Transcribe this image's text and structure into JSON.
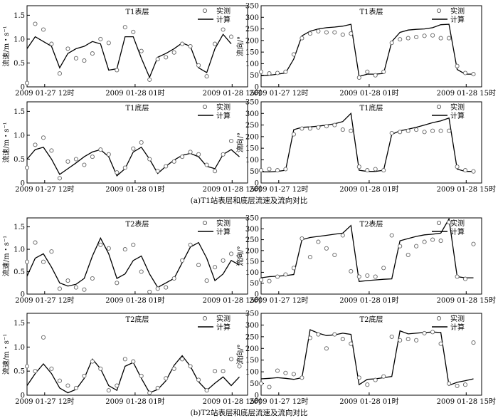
{
  "captions": {
    "a": "(a)T1站表层和底层流速及流向对比",
    "b": "(b)T2站表层和底层流速及流向对比"
  },
  "legend": {
    "measured": "实测",
    "computed": "计算"
  },
  "time_ticks": [
    "2009 01-27 12时",
    "2009 01-28 01时",
    "2009 01-28 15时"
  ],
  "chart_data": [
    {
      "type": "line",
      "title": "T1表层",
      "ylabel": "流速/m・s⁻¹",
      "xlim": [
        0,
        27
      ],
      "ylim": [
        0,
        1.7
      ],
      "yticks": [
        0,
        0.5,
        1.0,
        1.5
      ],
      "computed": {
        "x": [
          0,
          1,
          2,
          3,
          4,
          5,
          6,
          7,
          8,
          9,
          10,
          11,
          12,
          13,
          14,
          15,
          16,
          17,
          18,
          19,
          20,
          21,
          22,
          23,
          24,
          25,
          26,
          27
        ],
        "y": [
          0.8,
          1.05,
          0.95,
          0.85,
          0.4,
          0.7,
          0.8,
          0.85,
          0.95,
          0.9,
          0.35,
          0.38,
          1.05,
          1.05,
          0.6,
          0.2,
          0.62,
          0.7,
          0.8,
          0.92,
          0.85,
          0.4,
          0.3,
          0.8,
          1.1,
          0.9,
          null,
          null
        ]
      },
      "measured": {
        "x": [
          0,
          1,
          2,
          3,
          4,
          5,
          6,
          7,
          8,
          9,
          10,
          11,
          12,
          13,
          14,
          15,
          16,
          17,
          18,
          19,
          20,
          21,
          22,
          23,
          24,
          25
        ],
        "y": [
          0.08,
          1.32,
          1.2,
          0.9,
          0.28,
          0.8,
          0.6,
          0.55,
          0.7,
          1.0,
          0.92,
          0.35,
          1.25,
          1.15,
          0.75,
          0.15,
          0.58,
          0.62,
          0.72,
          0.9,
          0.85,
          0.45,
          0.22,
          0.9,
          1.2,
          1.05
        ]
      },
      "legend": "top-right"
    },
    {
      "type": "line",
      "title": "T1表层",
      "ylabel": "流向/°",
      "xlim": [
        0,
        27
      ],
      "ylim": [
        0,
        350
      ],
      "yticks": [
        0,
        50,
        100,
        150,
        200,
        250,
        300,
        350
      ],
      "computed": {
        "x": [
          0,
          1,
          2,
          3,
          4,
          5,
          6,
          7,
          8,
          9,
          10,
          11,
          12,
          13,
          14,
          15,
          16,
          17,
          18,
          19,
          20,
          21,
          22,
          23,
          24,
          25,
          26,
          27
        ],
        "y": [
          48,
          50,
          55,
          60,
          120,
          220,
          240,
          250,
          255,
          258,
          262,
          270,
          45,
          55,
          55,
          58,
          195,
          235,
          245,
          248,
          250,
          255,
          268,
          270,
          75,
          55,
          55,
          null
        ]
      },
      "measured": {
        "x": [
          0,
          1,
          2,
          3,
          4,
          5,
          6,
          7,
          8,
          9,
          10,
          11,
          12,
          13,
          14,
          15,
          16,
          17,
          18,
          19,
          20,
          21,
          22,
          23,
          24,
          25,
          26
        ],
        "y": [
          65,
          58,
          60,
          65,
          140,
          210,
          230,
          240,
          235,
          235,
          225,
          230,
          40,
          65,
          50,
          65,
          190,
          205,
          210,
          215,
          220,
          222,
          210,
          210,
          90,
          60,
          55
        ]
      },
      "legend": "top-right"
    },
    {
      "type": "line",
      "title": "T1底层",
      "ylabel": "流速/m・s⁻¹",
      "xlim": [
        0,
        27
      ],
      "ylim": [
        0,
        1.7
      ],
      "yticks": [
        0,
        0.5,
        1.0,
        1.5
      ],
      "computed": {
        "x": [
          0,
          1,
          2,
          3,
          4,
          5,
          6,
          7,
          8,
          9,
          10,
          11,
          12,
          13,
          14,
          15,
          16,
          17,
          18,
          19,
          20,
          21,
          22,
          23,
          24,
          25,
          26
        ],
        "y": [
          0.5,
          0.7,
          0.75,
          0.5,
          0.18,
          0.3,
          0.42,
          0.55,
          0.65,
          0.7,
          0.55,
          0.15,
          0.3,
          0.65,
          0.75,
          0.5,
          0.2,
          0.35,
          0.48,
          0.58,
          0.62,
          0.55,
          0.35,
          0.3,
          0.6,
          0.7,
          0.55
        ]
      },
      "measured": {
        "x": [
          0,
          1,
          2,
          3,
          4,
          5,
          6,
          7,
          8,
          9,
          10,
          11,
          12,
          13,
          14,
          15,
          16,
          17,
          18,
          19,
          20,
          21,
          22,
          23,
          24,
          25,
          26
        ],
        "y": [
          0.32,
          0.8,
          0.95,
          0.68,
          0.1,
          0.45,
          0.5,
          0.38,
          0.55,
          0.7,
          0.6,
          0.22,
          0.32,
          0.72,
          0.85,
          0.5,
          0.25,
          0.35,
          0.45,
          0.55,
          0.65,
          0.6,
          0.38,
          0.25,
          0.6,
          0.88,
          0.78
        ]
      },
      "legend": "top-right"
    },
    {
      "type": "line",
      "title": "T1底层",
      "ylabel": "流向/°",
      "xlim": [
        0,
        27
      ],
      "ylim": [
        0,
        350
      ],
      "yticks": [
        0,
        50,
        100,
        150,
        200,
        250,
        300,
        350
      ],
      "computed": {
        "x": [
          0,
          1,
          2,
          3,
          4,
          5,
          6,
          7,
          8,
          9,
          10,
          11,
          12,
          13,
          14,
          15,
          16,
          17,
          18,
          19,
          20,
          21,
          22,
          23,
          24,
          25,
          26
        ],
        "y": [
          48,
          48,
          50,
          55,
          230,
          240,
          242,
          245,
          250,
          255,
          265,
          300,
          55,
          50,
          50,
          55,
          210,
          225,
          232,
          240,
          250,
          260,
          268,
          280,
          60,
          50,
          50
        ]
      },
      "measured": {
        "x": [
          0,
          1,
          2,
          3,
          4,
          5,
          6,
          7,
          8,
          9,
          10,
          11,
          12,
          13,
          14,
          15,
          16,
          17,
          18,
          19,
          20,
          21,
          22,
          23,
          24,
          25,
          26
        ],
        "y": [
          55,
          60,
          55,
          60,
          210,
          235,
          235,
          240,
          245,
          250,
          230,
          225,
          70,
          55,
          60,
          55,
          215,
          220,
          225,
          230,
          220,
          225,
          225,
          225,
          70,
          55,
          50
        ]
      },
      "legend": "top-right"
    },
    {
      "type": "line",
      "title": "T2表层",
      "ylabel": "流速/m・s⁻¹",
      "xlim": [
        0,
        27
      ],
      "ylim": [
        0,
        1.7
      ],
      "yticks": [
        0,
        0.5,
        1.0,
        1.5
      ],
      "computed": {
        "x": [
          0,
          1,
          2,
          3,
          4,
          5,
          6,
          7,
          8,
          9,
          10,
          11,
          12,
          13,
          14,
          15,
          16,
          17,
          18,
          19,
          20,
          21,
          22,
          23,
          24,
          25,
          26
        ],
        "y": [
          0.4,
          0.8,
          0.9,
          0.6,
          0.25,
          0.18,
          0.22,
          0.35,
          0.85,
          1.25,
          0.9,
          0.35,
          0.45,
          0.75,
          0.85,
          0.45,
          0.15,
          0.25,
          0.35,
          0.7,
          1.05,
          1.15,
          0.8,
          0.3,
          0.45,
          0.75,
          0.65
        ]
      },
      "measured": {
        "x": [
          0,
          1,
          2,
          3,
          4,
          5,
          6,
          7,
          8,
          9,
          10,
          11,
          12,
          13,
          14,
          15,
          16,
          17,
          18,
          19,
          20,
          21,
          22,
          23,
          24,
          25,
          26
        ],
        "y": [
          0.72,
          1.15,
          0.72,
          0.95,
          0.12,
          0.3,
          0.15,
          0.1,
          0.35,
          1.1,
          1.02,
          0.25,
          1.0,
          1.1,
          0.5,
          0.05,
          0.12,
          0.15,
          0.35,
          0.75,
          1.1,
          0.65,
          0.3,
          0.6,
          0.75,
          0.9,
          0.85
        ]
      },
      "legend": "top-right"
    },
    {
      "type": "line",
      "title": "T2表层",
      "ylabel": "流向/°",
      "xlim": [
        0,
        27
      ],
      "ylim": [
        0,
        350
      ],
      "yticks": [
        0,
        50,
        100,
        150,
        200,
        250,
        300,
        350
      ],
      "computed": {
        "x": [
          0,
          1,
          2,
          3,
          4,
          5,
          6,
          7,
          8,
          9,
          10,
          11,
          12,
          13,
          14,
          15,
          16,
          17,
          18,
          19,
          20,
          21,
          22,
          23,
          24,
          25,
          26
        ],
        "y": [
          75,
          80,
          82,
          85,
          90,
          250,
          260,
          265,
          270,
          275,
          280,
          315,
          58,
          62,
          65,
          68,
          70,
          245,
          255,
          265,
          272,
          275,
          280,
          345,
          80,
          75,
          75
        ]
      },
      "measured": {
        "x": [
          0,
          1,
          2,
          3,
          4,
          5,
          6,
          7,
          8,
          9,
          10,
          11,
          12,
          13,
          14,
          15,
          16,
          17,
          18,
          19,
          20,
          21,
          22,
          23,
          24,
          25,
          26
        ],
        "y": [
          65,
          60,
          80,
          90,
          120,
          255,
          170,
          240,
          210,
          180,
          270,
          105,
          80,
          85,
          80,
          120,
          270,
          220,
          180,
          220,
          240,
          250,
          245,
          330,
          80,
          70,
          230
        ]
      },
      "legend": "top-right"
    },
    {
      "type": "line",
      "title": "T2底层",
      "ylabel": "流速/m・s⁻¹",
      "xlim": [
        0,
        27
      ],
      "ylim": [
        0,
        1.7
      ],
      "yticks": [
        0,
        0.5,
        1.0,
        1.5
      ],
      "computed": {
        "x": [
          0,
          1,
          2,
          3,
          4,
          5,
          6,
          7,
          8,
          9,
          10,
          11,
          12,
          13,
          14,
          15,
          16,
          17,
          18,
          19,
          20,
          21,
          22,
          23,
          24,
          25,
          26
        ],
        "y": [
          0.2,
          0.45,
          0.65,
          0.45,
          0.15,
          0.05,
          0.12,
          0.35,
          0.75,
          0.55,
          0.2,
          0.1,
          0.6,
          0.68,
          0.35,
          0.05,
          0.12,
          0.3,
          0.62,
          0.82,
          0.6,
          0.28,
          0.1,
          0.25,
          0.38,
          0.2,
          0.38
        ]
      },
      "measured": {
        "x": [
          0,
          1,
          2,
          3,
          4,
          5,
          6,
          7,
          8,
          9,
          10,
          11,
          12,
          13,
          14,
          15,
          16,
          17,
          18,
          19,
          20,
          21,
          22,
          23,
          24,
          25,
          26
        ],
        "y": [
          0.6,
          0.5,
          1.2,
          0.55,
          0.3,
          0.2,
          0.15,
          0.4,
          0.7,
          0.55,
          0.1,
          0.2,
          0.75,
          0.7,
          0.4,
          0.05,
          0.15,
          0.35,
          0.55,
          0.75,
          0.6,
          0.32,
          0.1,
          0.5,
          0.5,
          0.75,
          0.6
        ]
      },
      "legend": "top-right"
    },
    {
      "type": "line",
      "title": "T2底层",
      "ylabel": "流向/°",
      "xlim": [
        0,
        27
      ],
      "ylim": [
        0,
        350
      ],
      "yticks": [
        0,
        50,
        100,
        150,
        200,
        250,
        300,
        350
      ],
      "computed": {
        "x": [
          0,
          1,
          2,
          3,
          4,
          5,
          6,
          7,
          8,
          9,
          10,
          11,
          12,
          13,
          14,
          15,
          16,
          17,
          18,
          19,
          20,
          21,
          22,
          23,
          24,
          25,
          26
        ],
        "y": [
          70,
          72,
          75,
          72,
          68,
          75,
          280,
          265,
          255,
          258,
          265,
          260,
          45,
          68,
          70,
          75,
          80,
          275,
          262,
          265,
          268,
          270,
          268,
          42,
          55,
          62,
          70
        ]
      },
      "measured": {
        "x": [
          0,
          1,
          2,
          3,
          4,
          5,
          6,
          7,
          8,
          9,
          10,
          11,
          12,
          13,
          14,
          15,
          16,
          17,
          18,
          19,
          20,
          21,
          22,
          23,
          24,
          25,
          26
        ],
        "y": [
          50,
          35,
          105,
          95,
          90,
          75,
          245,
          260,
          200,
          260,
          240,
          220,
          75,
          45,
          65,
          80,
          250,
          235,
          240,
          235,
          265,
          270,
          220,
          50,
          40,
          45,
          225
        ]
      },
      "legend": "top-right"
    }
  ]
}
